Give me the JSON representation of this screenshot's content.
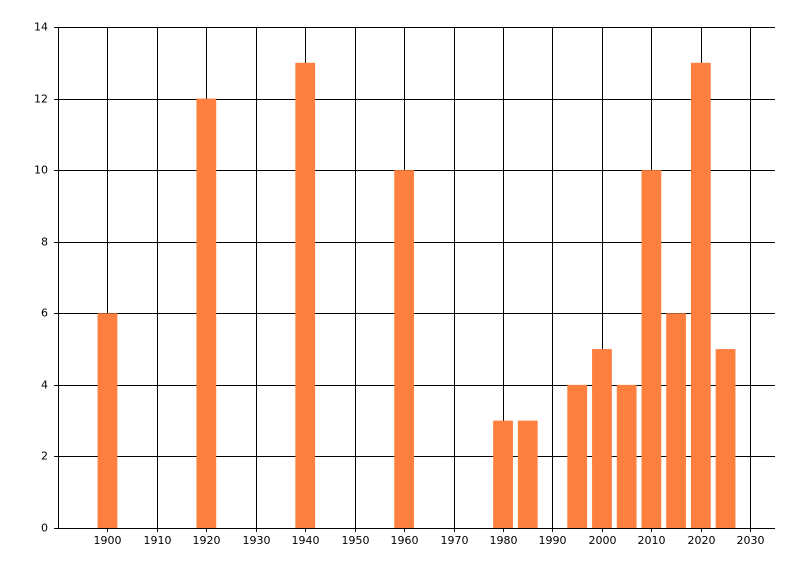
{
  "chart_data": {
    "type": "bar",
    "x": [
      1900,
      1920,
      1940,
      1960,
      1980,
      1985,
      1995,
      2000,
      2005,
      2010,
      2015,
      2020,
      2025
    ],
    "values": [
      6,
      12,
      13,
      10,
      3,
      3,
      4,
      5,
      4,
      10,
      6,
      13,
      5
    ],
    "color": "#ff7f3f",
    "xlim": [
      1890,
      2035
    ],
    "xticks": [
      1900,
      1910,
      1920,
      1930,
      1940,
      1950,
      1960,
      1970,
      1980,
      1990,
      2000,
      2010,
      2020,
      2030
    ],
    "ylim": [
      0,
      14
    ],
    "yticks": [
      0,
      2,
      4,
      6,
      8,
      10,
      12,
      14
    ],
    "grid": true
  }
}
